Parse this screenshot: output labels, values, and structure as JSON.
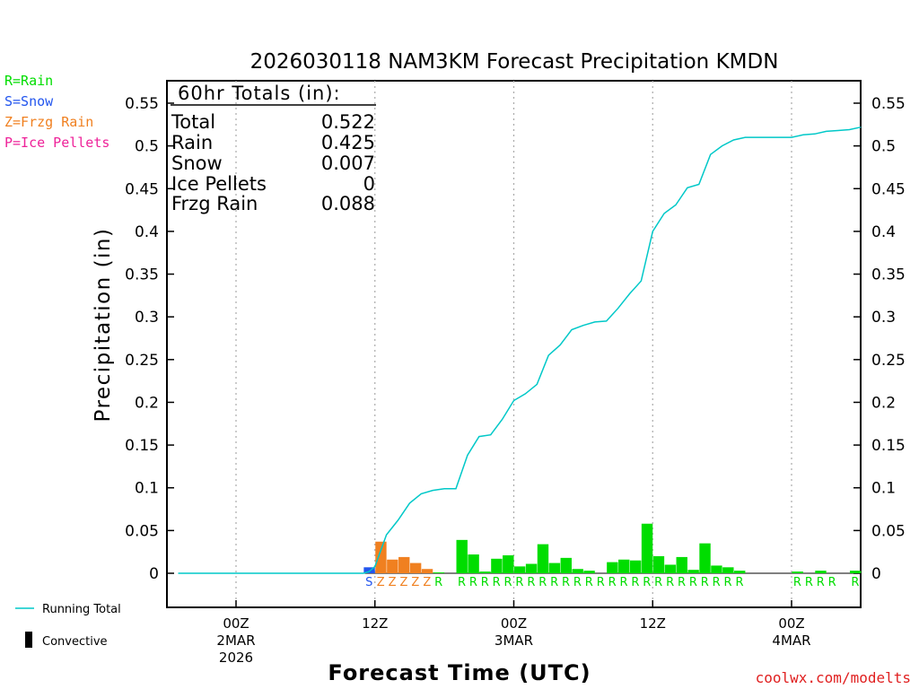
{
  "chart_data": {
    "type": "bar",
    "title": "2026030118 NAM3KM Forecast Precipitation KMDN",
    "ylabel": "Precipitation (in)",
    "xlabel": "Forecast Time (UTC)",
    "ylim": [
      -0.04,
      0.575
    ],
    "yticks": [
      "0.55",
      "0.5",
      "0.45",
      "0.4",
      "0.35",
      "0.3",
      "0.25",
      "0.2",
      "0.15",
      "0.1",
      "0.05",
      "0"
    ],
    "ytick_values": [
      0.55,
      0.5,
      0.45,
      0.4,
      0.35,
      0.3,
      0.25,
      0.2,
      0.15,
      0.1,
      0.05,
      0
    ],
    "xlim_hours": [
      -5,
      54
    ],
    "xticks": [
      {
        "hour": 0,
        "l1": "00Z",
        "l2": "2MAR",
        "l3": "2026"
      },
      {
        "hour": 12,
        "l1": "12Z",
        "l2": "",
        "l3": ""
      },
      {
        "hour": 24,
        "l1": "00Z",
        "l2": "3MAR",
        "l3": ""
      },
      {
        "hour": 36,
        "l1": "12Z",
        "l2": "",
        "l3": ""
      },
      {
        "hour": 48,
        "l1": "00Z",
        "l2": "4MAR",
        "l3": ""
      }
    ],
    "bar_hours": [
      12,
      13,
      14,
      15,
      16,
      17,
      18,
      19,
      20,
      21,
      22,
      23,
      24,
      25,
      26,
      27,
      28,
      29,
      30,
      31,
      32,
      33,
      34,
      35,
      36,
      37,
      38,
      39,
      40,
      41,
      42,
      43,
      44,
      45,
      46,
      47,
      48,
      49,
      50,
      51,
      52,
      53,
      54
    ],
    "bar_values": [
      0.007,
      0.037,
      0.016,
      0.019,
      0.012,
      0.005,
      0.001,
      0.0,
      0.039,
      0.022,
      0.002,
      0.017,
      0.021,
      0.008,
      0.011,
      0.034,
      0.012,
      0.018,
      0.005,
      0.003,
      0.0,
      0.013,
      0.016,
      0.015,
      0.058,
      0.02,
      0.01,
      0.019,
      0.004,
      0.035,
      0.009,
      0.007,
      0.003,
      0.0,
      0.0,
      0.0,
      0.0,
      0.002,
      0.0,
      0.003,
      0.0,
      0.0,
      0.003
    ],
    "bar_types": [
      "S",
      "Z",
      "Z",
      "Z",
      "Z",
      "Z",
      "R",
      "",
      "R",
      "R",
      "R",
      "R",
      "R",
      "R",
      "R",
      "R",
      "R",
      "R",
      "R",
      "R",
      "R",
      "R",
      "R",
      "R",
      "R",
      "R",
      "R",
      "R",
      "R",
      "R",
      "R",
      "R",
      "R",
      "",
      "",
      "",
      "",
      "R",
      "R",
      "R",
      "R",
      "",
      "R"
    ],
    "type_colors": {
      "R": "#00dd00",
      "S": "#2255ee",
      "Z": "#f08020",
      "P": "#ee2299"
    },
    "running_total": {
      "hours": [
        -5,
        11,
        11.5,
        12,
        13,
        14,
        15,
        16,
        17,
        18,
        19,
        20,
        21,
        22,
        23,
        24,
        25,
        26,
        27,
        28,
        29,
        30,
        31,
        32,
        33,
        34,
        35,
        36,
        37,
        38,
        39,
        40,
        41,
        42,
        43,
        44,
        45,
        46,
        47,
        48,
        49,
        50,
        51,
        52,
        53,
        54
      ],
      "values": [
        0,
        0,
        0.002,
        0.008,
        0.045,
        0.062,
        0.082,
        0.093,
        0.097,
        0.099,
        0.099,
        0.138,
        0.16,
        0.162,
        0.18,
        0.202,
        0.21,
        0.221,
        0.255,
        0.267,
        0.285,
        0.29,
        0.294,
        0.295,
        0.31,
        0.327,
        0.342,
        0.4,
        0.421,
        0.431,
        0.451,
        0.455,
        0.49,
        0.5,
        0.507,
        0.51,
        0.51,
        0.51,
        0.51,
        0.51,
        0.513,
        0.514,
        0.517,
        0.518,
        0.519,
        0.522
      ]
    },
    "line_color": "#00c8c8"
  },
  "legend": {
    "items": [
      {
        "text": "R=Rain",
        "color": "#00dd00"
      },
      {
        "text": "S=Snow",
        "color": "#2255ee"
      },
      {
        "text": "Z=Frzg Rain",
        "color": "#f08020"
      },
      {
        "text": "P=Ice Pellets",
        "color": "#ee2299"
      }
    ]
  },
  "totals": {
    "header": "60hr Totals (in):",
    "rows": [
      {
        "label": "Total",
        "value": "0.522"
      },
      {
        "label": "Rain",
        "value": "0.425"
      },
      {
        "label": "Snow",
        "value": "0.007"
      },
      {
        "label": "Ice Pellets",
        "value": "0"
      },
      {
        "label": "Frzg Rain",
        "value": "0.088"
      }
    ]
  },
  "key": {
    "running_total": "Running Total",
    "convective": "Convective"
  },
  "credit": "coolwx.com/modelts"
}
